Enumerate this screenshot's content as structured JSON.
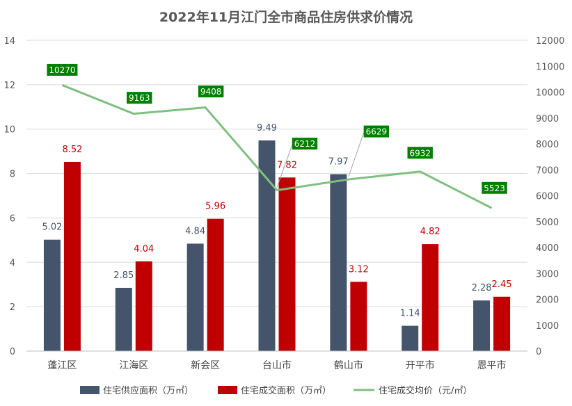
{
  "chart_data": {
    "type": "bar+line",
    "title": "2022年11月江门全市商品住房供求价情况",
    "categories": [
      "蓬江区",
      "江海区",
      "新会区",
      "台山市",
      "鹤山市",
      "开平市",
      "恩平市"
    ],
    "series": [
      {
        "name": "住宅供应面积（万㎡）",
        "type": "bar",
        "axis": "left",
        "color": "#44546a",
        "values": [
          5.02,
          2.85,
          4.84,
          9.49,
          7.97,
          1.14,
          2.28
        ],
        "labels": [
          "5.02",
          "2.85",
          "4.84",
          "9.49",
          "7.97",
          "1.14",
          "2.28"
        ]
      },
      {
        "name": "住宅成交面积（万㎡）",
        "type": "bar",
        "axis": "left",
        "color": "#c00000",
        "values": [
          8.52,
          4.04,
          5.96,
          7.82,
          3.12,
          4.82,
          2.45
        ],
        "labels": [
          "8.52",
          "4.04",
          "5.96",
          "7.82",
          "3.12",
          "4.82",
          "2.45"
        ]
      },
      {
        "name": "住宅成交均价（元/㎡）",
        "type": "line",
        "axis": "right",
        "color": "#7fbf7f",
        "label_bg": "#008000",
        "values": [
          10270,
          9163,
          9408,
          6212,
          6629,
          6932,
          5523
        ],
        "labels": [
          "10270",
          "9163",
          "9408",
          "6212",
          "6629",
          "6932",
          "5523"
        ]
      }
    ],
    "y_left": {
      "min": 0,
      "max": 14,
      "ticks": [
        "0",
        "2",
        "4",
        "6",
        "8",
        "10",
        "12",
        "14"
      ]
    },
    "y_right": {
      "min": 0,
      "max": 12000,
      "ticks": [
        "0",
        "1000",
        "2000",
        "3000",
        "4000",
        "5000",
        "6000",
        "7000",
        "8000",
        "9000",
        "10000",
        "11000",
        "12000"
      ]
    },
    "grid": true,
    "legend": "bottom"
  }
}
